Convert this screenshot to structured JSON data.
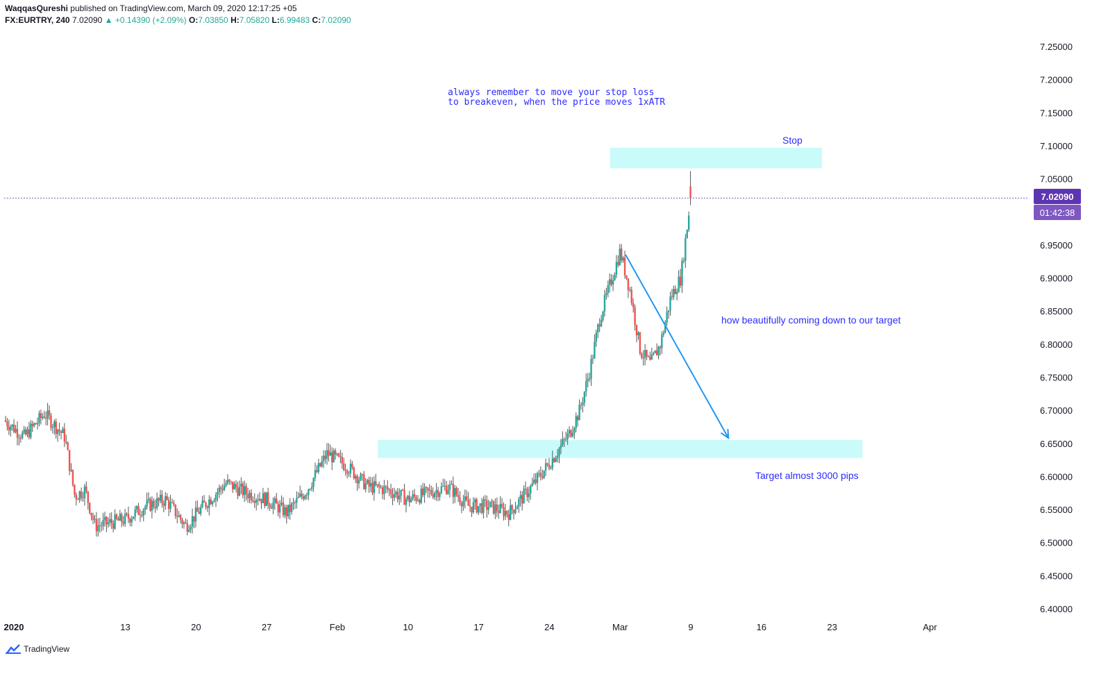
{
  "header": {
    "author": "WaqqasQureshi",
    "published": "published on TradingView.com, March 09, 2020 12:17:25 +05",
    "symbol": "FX:EURTRY, 240",
    "last": "7.02090",
    "change": "+0.14390 (+2.09%)",
    "o_label": "O:",
    "o_value": "7.03850",
    "h_label": "H:",
    "h_value": "7.05820",
    "l_label": "L:",
    "l_value": "6.99483",
    "c_label": "C:",
    "c_value": "7.02090"
  },
  "price_label": "7.02090",
  "countdown_label": "01:42:38",
  "footer_brand": "TradingView",
  "colors": {
    "up": "#26a69a",
    "down": "#ef5350",
    "zone": "#c9fbfb",
    "annotation": "#2b2bff",
    "arrow": "#2196f3",
    "price_badge": "#5e35b1",
    "countdown_badge": "#7e57c2"
  },
  "chart_data": {
    "type": "candlestick",
    "symbol": "FX:EURTRY",
    "interval": "240",
    "y_axis_ticks": [
      "7.25000",
      "7.20000",
      "7.15000",
      "7.10000",
      "7.05000",
      "6.95000",
      "6.90000",
      "6.85000",
      "6.80000",
      "6.75000",
      "6.70000",
      "6.65000",
      "6.60000",
      "6.55000",
      "6.50000",
      "6.45000",
      "6.40000"
    ],
    "y_tick_values": [
      7.25,
      7.2,
      7.15,
      7.1,
      7.05,
      6.95,
      6.9,
      6.85,
      6.8,
      6.75,
      6.7,
      6.65,
      6.6,
      6.55,
      6.5,
      6.45,
      6.4
    ],
    "ylim": [
      6.375,
      7.29
    ],
    "x_axis_ticks": [
      {
        "label": "2020",
        "bold": true
      },
      {
        "label": "13"
      },
      {
        "label": "20"
      },
      {
        "label": "27"
      },
      {
        "label": "Feb"
      },
      {
        "label": "10"
      },
      {
        "label": "17"
      },
      {
        "label": "24"
      },
      {
        "label": "Mar"
      },
      {
        "label": "9"
      },
      {
        "label": "16"
      },
      {
        "label": "23"
      },
      {
        "label": "Apr"
      }
    ],
    "current_price": 7.0209,
    "close_path": [
      {
        "date": "2020-01-01",
        "close": 6.685
      },
      {
        "date": "2020-01-03",
        "close": 6.66
      },
      {
        "date": "2020-01-05",
        "close": 6.695
      },
      {
        "date": "2020-01-07",
        "close": 6.66
      },
      {
        "date": "2020-01-08",
        "close": 6.57
      },
      {
        "date": "2020-01-09",
        "close": 6.58
      },
      {
        "date": "2020-01-10",
        "close": 6.525
      },
      {
        "date": "2020-01-13",
        "close": 6.535
      },
      {
        "date": "2020-01-15",
        "close": 6.555
      },
      {
        "date": "2020-01-17",
        "close": 6.565
      },
      {
        "date": "2020-01-19",
        "close": 6.525
      },
      {
        "date": "2020-01-21",
        "close": 6.56
      },
      {
        "date": "2020-01-23",
        "close": 6.59
      },
      {
        "date": "2020-01-25",
        "close": 6.575
      },
      {
        "date": "2020-01-27",
        "close": 6.565
      },
      {
        "date": "2020-01-29",
        "close": 6.545
      },
      {
        "date": "2020-01-31",
        "close": 6.58
      },
      {
        "date": "2020-02-02",
        "close": 6.635
      },
      {
        "date": "2020-02-04",
        "close": 6.615
      },
      {
        "date": "2020-02-06",
        "close": 6.585
      },
      {
        "date": "2020-02-08",
        "close": 6.58
      },
      {
        "date": "2020-02-10",
        "close": 6.565
      },
      {
        "date": "2020-02-12",
        "close": 6.575
      },
      {
        "date": "2020-02-14",
        "close": 6.585
      },
      {
        "date": "2020-02-16",
        "close": 6.555
      },
      {
        "date": "2020-02-18",
        "close": 6.555
      },
      {
        "date": "2020-02-20",
        "close": 6.545
      },
      {
        "date": "2020-02-22",
        "close": 6.58
      },
      {
        "date": "2020-02-24",
        "close": 6.62
      },
      {
        "date": "2020-02-26",
        "close": 6.665
      },
      {
        "date": "2020-02-27",
        "close": 6.7
      },
      {
        "date": "2020-02-28",
        "close": 6.76
      },
      {
        "date": "2020-02-29",
        "close": 6.84
      },
      {
        "date": "2020-03-01",
        "close": 6.89
      },
      {
        "date": "2020-03-02",
        "close": 6.94
      },
      {
        "date": "2020-03-03",
        "close": 6.88
      },
      {
        "date": "2020-03-04",
        "close": 6.79
      },
      {
        "date": "2020-03-05",
        "close": 6.77
      },
      {
        "date": "2020-03-06",
        "close": 6.8
      },
      {
        "date": "2020-03-07",
        "close": 6.87
      },
      {
        "date": "2020-03-08",
        "close": 6.9
      },
      {
        "date": "2020-03-09",
        "close": 7.0209
      }
    ],
    "zones": [
      {
        "name": "Stop",
        "from": 7.066,
        "to": 7.097,
        "start_date": "2020-03-01",
        "end_date": "2020-03-22"
      },
      {
        "name": "Target",
        "from": 6.628,
        "to": 6.655,
        "start_date": "2020-02-07",
        "end_date": "2020-03-26"
      }
    ],
    "trend_arrow": {
      "from_date": "2020-03-02",
      "from_price": 6.935,
      "to_date": "2020-03-13",
      "to_price": 6.655
    },
    "annotations": [
      "always remember to move your stop loss",
      "to breakeven, when the price moves 1xATR",
      "Stop",
      "how beautifully coming down to our target",
      "Target almost 3000 pips"
    ]
  }
}
